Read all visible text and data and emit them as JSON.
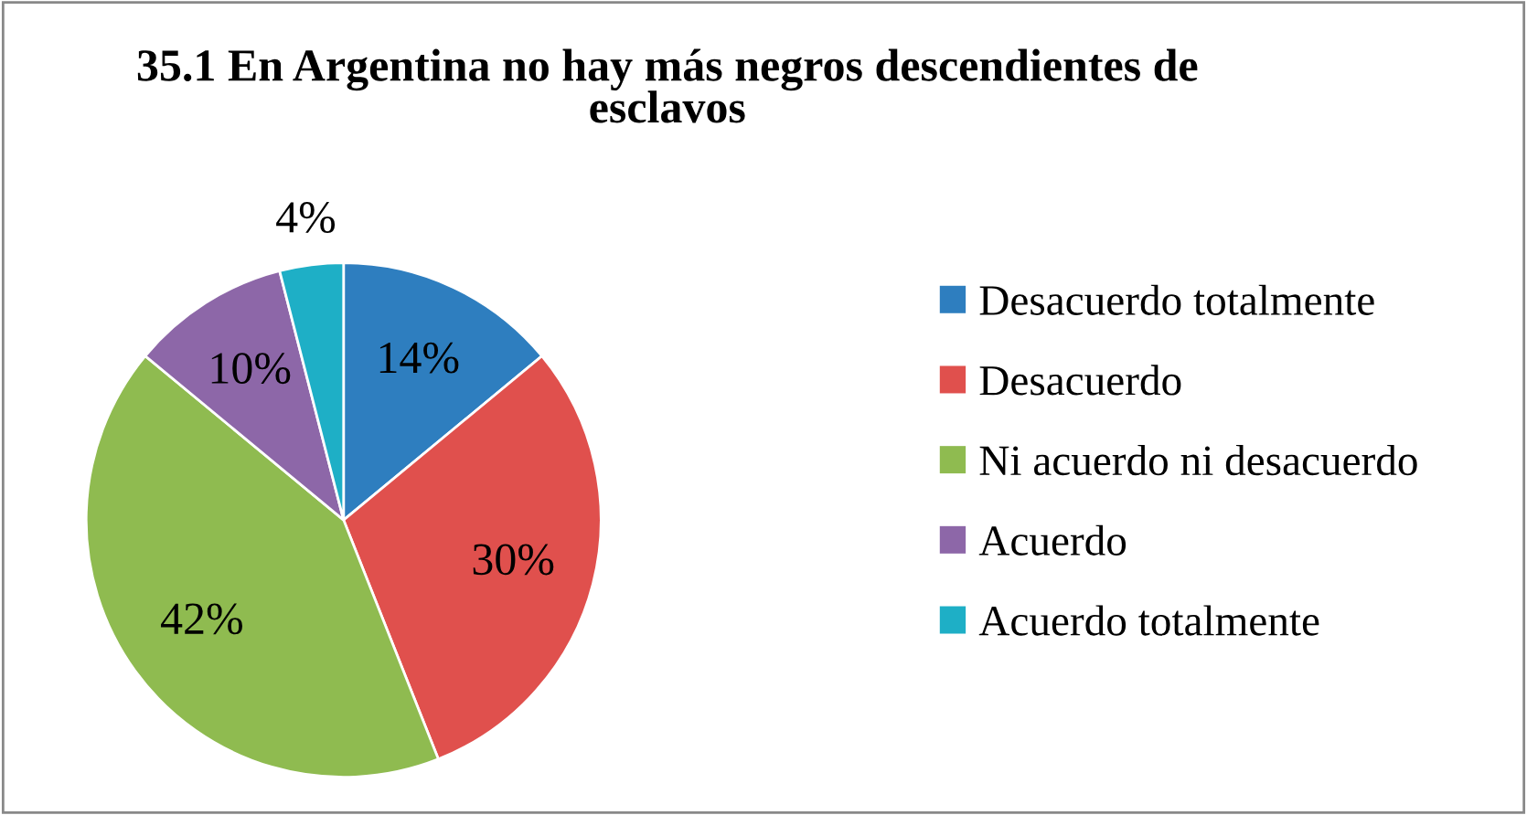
{
  "chart_data": {
    "type": "pie",
    "title": "35.1 En Argentina no hay más negros descendientes de esclavos",
    "categories": [
      "Desacuerdo totalmente",
      "Desacuerdo",
      "Ni acuerdo ni desacuerdo",
      "Acuerdo",
      "Acuerdo totalmente"
    ],
    "values": [
      14,
      30,
      42,
      10,
      4
    ],
    "colors": [
      "#2e7ebf",
      "#e0504d",
      "#8fbb50",
      "#8d67a8",
      "#1eafc6"
    ],
    "value_labels": [
      "14%",
      "30%",
      "42%",
      "10%",
      "4%"
    ],
    "legend": "right"
  }
}
